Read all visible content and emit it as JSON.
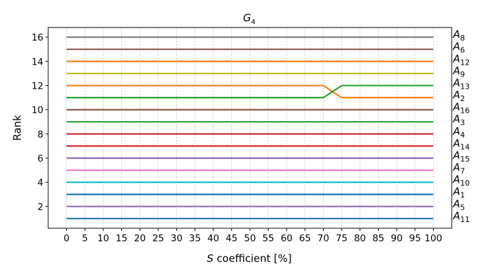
{
  "chart_data": {
    "type": "line",
    "title": "G",
    "title_sub": "4",
    "xlabel_italic": "S",
    "xlabel_rest": " coefficient [%]",
    "ylabel": "Rank",
    "x": [
      0,
      5,
      10,
      15,
      20,
      25,
      30,
      35,
      40,
      45,
      50,
      55,
      60,
      65,
      70,
      75,
      80,
      85,
      90,
      95,
      100
    ],
    "xticks": [
      "0",
      "5",
      "10",
      "15",
      "20",
      "25",
      "30",
      "35",
      "40",
      "45",
      "50",
      "55",
      "60",
      "65",
      "70",
      "75",
      "80",
      "85",
      "90",
      "95",
      "100"
    ],
    "yticks": [
      "2",
      "4",
      "6",
      "8",
      "10",
      "12",
      "14",
      "16"
    ],
    "ylim": [
      0.2,
      16.8
    ],
    "xlim": [
      -5,
      105
    ],
    "grid": true,
    "series": [
      {
        "name": "A",
        "sub": "8",
        "color": "#7f7f7f",
        "values": [
          16,
          16,
          16,
          16,
          16,
          16,
          16,
          16,
          16,
          16,
          16,
          16,
          16,
          16,
          16,
          16,
          16,
          16,
          16,
          16,
          16
        ]
      },
      {
        "name": "A",
        "sub": "6",
        "color": "#8c564b",
        "values": [
          15,
          15,
          15,
          15,
          15,
          15,
          15,
          15,
          15,
          15,
          15,
          15,
          15,
          15,
          15,
          15,
          15,
          15,
          15,
          15,
          15
        ]
      },
      {
        "name": "A",
        "sub": "12",
        "color": "#ff7f0e",
        "values": [
          14,
          14,
          14,
          14,
          14,
          14,
          14,
          14,
          14,
          14,
          14,
          14,
          14,
          14,
          14,
          14,
          14,
          14,
          14,
          14,
          14
        ]
      },
      {
        "name": "A",
        "sub": "9",
        "color": "#bcbd22",
        "values": [
          13,
          13,
          13,
          13,
          13,
          13,
          13,
          13,
          13,
          13,
          13,
          13,
          13,
          13,
          13,
          13,
          13,
          13,
          13,
          13,
          13
        ]
      },
      {
        "name": "A",
        "sub": "13",
        "color": "#ff7f0e",
        "values": [
          12,
          12,
          12,
          12,
          12,
          12,
          12,
          12,
          12,
          12,
          12,
          12,
          12,
          12,
          12,
          11,
          11,
          11,
          11,
          11,
          11
        ]
      },
      {
        "name": "A",
        "sub": "2",
        "color": "#2ca02c",
        "values": [
          11,
          11,
          11,
          11,
          11,
          11,
          11,
          11,
          11,
          11,
          11,
          11,
          11,
          11,
          11,
          12,
          12,
          12,
          12,
          12,
          12
        ]
      },
      {
        "name": "A",
        "sub": "16",
        "color": "#8c564b",
        "values": [
          10,
          10,
          10,
          10,
          10,
          10,
          10,
          10,
          10,
          10,
          10,
          10,
          10,
          10,
          10,
          10,
          10,
          10,
          10,
          10,
          10
        ]
      },
      {
        "name": "A",
        "sub": "3",
        "color": "#2ca02c",
        "values": [
          9,
          9,
          9,
          9,
          9,
          9,
          9,
          9,
          9,
          9,
          9,
          9,
          9,
          9,
          9,
          9,
          9,
          9,
          9,
          9,
          9
        ]
      },
      {
        "name": "A",
        "sub": "4",
        "color": "#d62728",
        "values": [
          8,
          8,
          8,
          8,
          8,
          8,
          8,
          8,
          8,
          8,
          8,
          8,
          8,
          8,
          8,
          8,
          8,
          8,
          8,
          8,
          8
        ]
      },
      {
        "name": "A",
        "sub": "14",
        "color": "#d62728",
        "values": [
          7,
          7,
          7,
          7,
          7,
          7,
          7,
          7,
          7,
          7,
          7,
          7,
          7,
          7,
          7,
          7,
          7,
          7,
          7,
          7,
          7
        ]
      },
      {
        "name": "A",
        "sub": "15",
        "color": "#9467bd",
        "values": [
          6,
          6,
          6,
          6,
          6,
          6,
          6,
          6,
          6,
          6,
          6,
          6,
          6,
          6,
          6,
          6,
          6,
          6,
          6,
          6,
          6
        ]
      },
      {
        "name": "A",
        "sub": "7",
        "color": "#e377c2",
        "values": [
          5,
          5,
          5,
          5,
          5,
          5,
          5,
          5,
          5,
          5,
          5,
          5,
          5,
          5,
          5,
          5,
          5,
          5,
          5,
          5,
          5
        ]
      },
      {
        "name": "A",
        "sub": "10",
        "color": "#17becf",
        "values": [
          4,
          4,
          4,
          4,
          4,
          4,
          4,
          4,
          4,
          4,
          4,
          4,
          4,
          4,
          4,
          4,
          4,
          4,
          4,
          4,
          4
        ]
      },
      {
        "name": "A",
        "sub": "1",
        "color": "#1f77b4",
        "values": [
          3,
          3,
          3,
          3,
          3,
          3,
          3,
          3,
          3,
          3,
          3,
          3,
          3,
          3,
          3,
          3,
          3,
          3,
          3,
          3,
          3
        ]
      },
      {
        "name": "A",
        "sub": "5",
        "color": "#9467bd",
        "values": [
          2,
          2,
          2,
          2,
          2,
          2,
          2,
          2,
          2,
          2,
          2,
          2,
          2,
          2,
          2,
          2,
          2,
          2,
          2,
          2,
          2
        ]
      },
      {
        "name": "A",
        "sub": "11",
        "color": "#1f77b4",
        "values": [
          1,
          1,
          1,
          1,
          1,
          1,
          1,
          1,
          1,
          1,
          1,
          1,
          1,
          1,
          1,
          1,
          1,
          1,
          1,
          1,
          1
        ]
      }
    ]
  }
}
